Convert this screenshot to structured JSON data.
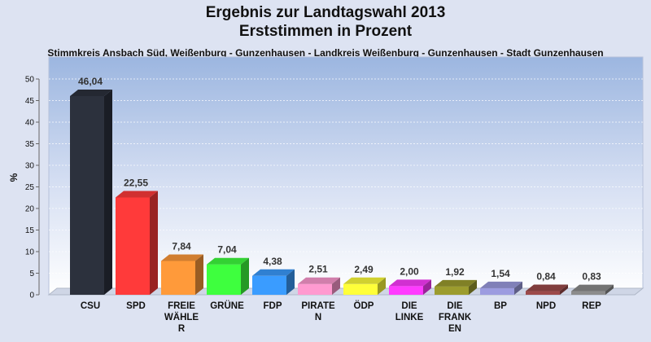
{
  "chart_data": {
    "type": "bar",
    "title": "Ergebnis zur Landtagswahl 2013",
    "subtitle_line": "Erststimmen in Prozent",
    "description": "Stimmkreis Ansbach Süd, Weißenburg - Gunzenhausen - Landkreis Weißenburg - Gunzenhausen - Stadt Gunzenhausen",
    "ylabel": "%",
    "ylim": [
      0,
      50
    ],
    "yticks": [
      0,
      5,
      10,
      15,
      20,
      25,
      30,
      35,
      40,
      45,
      50
    ],
    "grid": true,
    "categories": [
      {
        "name": "CSU",
        "label_lines": [
          "CSU"
        ],
        "value": 46.04,
        "value_label": "46,04",
        "color": "#2c313d"
      },
      {
        "name": "SPD",
        "label_lines": [
          "SPD"
        ],
        "value": 22.55,
        "value_label": "22,55",
        "color": "#ff3a3a"
      },
      {
        "name": "FREIE WÄHLER",
        "label_lines": [
          "FREIE",
          "WÄHLE",
          "R"
        ],
        "value": 7.84,
        "value_label": "7,84",
        "color": "#ff9a3a"
      },
      {
        "name": "GRÜNE",
        "label_lines": [
          "GRÜNE"
        ],
        "value": 7.04,
        "value_label": "7,04",
        "color": "#3eff3e"
      },
      {
        "name": "FDP",
        "label_lines": [
          "FDP"
        ],
        "value": 4.38,
        "value_label": "4,38",
        "color": "#3a9cff"
      },
      {
        "name": "PIRATEN",
        "label_lines": [
          "PIRATE",
          "N"
        ],
        "value": 2.51,
        "value_label": "2,51",
        "color": "#ff9ad0"
      },
      {
        "name": "ÖDP",
        "label_lines": [
          "ÖDP"
        ],
        "value": 2.49,
        "value_label": "2,49",
        "color": "#ffff3a"
      },
      {
        "name": "DIE LINKE",
        "label_lines": [
          "DIE",
          "LINKE"
        ],
        "value": 2.0,
        "value_label": "2,00",
        "color": "#ff3aff"
      },
      {
        "name": "DIE FRANKEN",
        "label_lines": [
          "DIE",
          "FRANK",
          "EN"
        ],
        "value": 1.92,
        "value_label": "1,92",
        "color": "#9c9c2e"
      },
      {
        "name": "BP",
        "label_lines": [
          "BP"
        ],
        "value": 1.54,
        "value_label": "1,54",
        "color": "#9c9ce0"
      },
      {
        "name": "NPD",
        "label_lines": [
          "NPD"
        ],
        "value": 0.84,
        "value_label": "0,84",
        "color": "#9c4a4a"
      },
      {
        "name": "REP",
        "label_lines": [
          "REP"
        ],
        "value": 0.83,
        "value_label": "0,83",
        "color": "#8c8c8c"
      }
    ]
  }
}
